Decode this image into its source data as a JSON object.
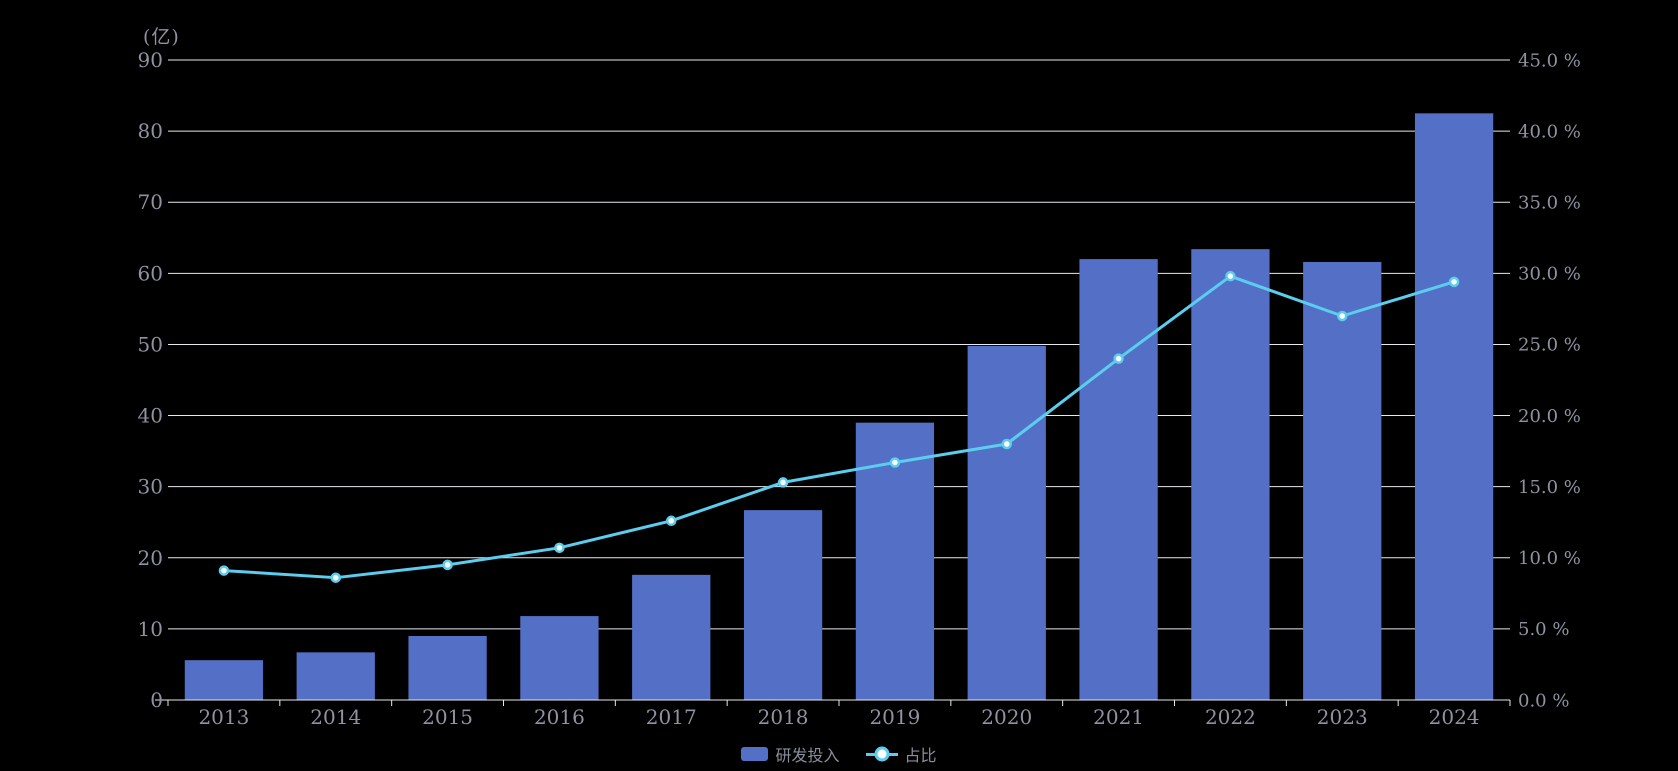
{
  "chart": {
    "colors": {
      "background": "#000000",
      "bar": "#5470c6",
      "line": "#5bcdee",
      "marker_fill": "#ffffff",
      "grid": "#e8e8ee",
      "axis_text": "#8f92a0",
      "legend_text": "#8b8e9b"
    },
    "legend": {
      "position": "bottom-center",
      "items": [
        {
          "label": "研发投入",
          "marker": "bar-swatch"
        },
        {
          "label": "占比",
          "marker": "line-dot-swatch"
        }
      ]
    }
  },
  "chart_data": {
    "type": "bar",
    "subtype": "dual-axis bar + line combo",
    "categories": [
      "2013",
      "2014",
      "2015",
      "2016",
      "2017",
      "2018",
      "2019",
      "2020",
      "2021",
      "2022",
      "2023",
      "2024"
    ],
    "series": [
      {
        "name": "研发投入",
        "type": "bar",
        "axis": "left",
        "unit": "亿",
        "color": "#5470c6",
        "values": [
          5.6,
          6.7,
          9.0,
          11.8,
          17.6,
          26.7,
          39.0,
          49.8,
          62.0,
          63.4,
          61.6,
          82.5
        ]
      },
      {
        "name": "占比",
        "type": "line",
        "axis": "right",
        "unit": "%",
        "color": "#5bcdee",
        "values": [
          9.1,
          8.6,
          9.5,
          10.7,
          12.6,
          15.3,
          16.7,
          18.0,
          24.0,
          29.8,
          27.0,
          29.4
        ]
      }
    ],
    "left_axis": {
      "unit_label": "(亿)",
      "min": 0,
      "max": 90,
      "tick_interval": 10,
      "ticks": [
        "0",
        "10",
        "20",
        "30",
        "40",
        "50",
        "60",
        "70",
        "80",
        "90"
      ]
    },
    "right_axis": {
      "min": 0,
      "max": 45,
      "tick_interval": 5,
      "ticks": [
        "0.0 %",
        "5.0 %",
        "10.0 %",
        "15.0 %",
        "20.0 %",
        "25.0 %",
        "30.0 %",
        "35.0 %",
        "40.0 %",
        "45.0 %"
      ]
    },
    "grid": true,
    "legend_position": "bottom-center"
  }
}
